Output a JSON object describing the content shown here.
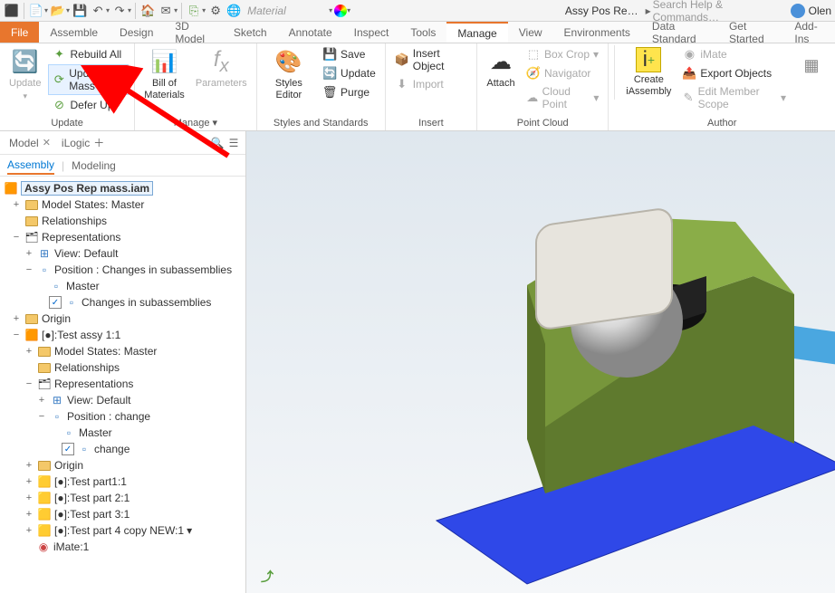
{
  "qat": {
    "material": "Material",
    "doc": "Assy Pos Re…",
    "search": "Search Help & Commands…",
    "user": "Olen"
  },
  "tabs": [
    {
      "label": "File",
      "cls": "file"
    },
    {
      "label": "Assemble"
    },
    {
      "label": "Design"
    },
    {
      "label": "3D Model"
    },
    {
      "label": "Sketch"
    },
    {
      "label": "Annotate"
    },
    {
      "label": "Inspect"
    },
    {
      "label": "Tools"
    },
    {
      "label": "Manage",
      "cls": "active"
    },
    {
      "label": "View"
    },
    {
      "label": "Environments"
    },
    {
      "label": "Data Standard"
    },
    {
      "label": "Get Started"
    },
    {
      "label": "Add-Ins"
    }
  ],
  "ribbon": {
    "update": {
      "title": "Update",
      "big": "Update",
      "rebuild": "Rebuild All",
      "mass": "Update Mass",
      "defer": "Defer Up"
    },
    "manage": {
      "title": "Manage ▾",
      "bom": "Bill of\nMaterials",
      "params": "Parameters"
    },
    "styles": {
      "title": "Styles and Standards",
      "editor": "Styles Editor",
      "save": "Save",
      "update": "Update",
      "purge": "Purge"
    },
    "insert": {
      "title": "Insert",
      "obj": "Insert Object",
      "import": "Import"
    },
    "pc": {
      "title": "Point Cloud",
      "attach": "Attach",
      "box": "Box Crop",
      "nav": "Navigator",
      "cloud": "Cloud Point"
    },
    "author": {
      "title": "Author",
      "create": "Create\niAssembly",
      "imate": "iMate",
      "export": "Export Objects",
      "scope": "Edit Member Scope"
    }
  },
  "browser": {
    "tab1": "Model",
    "tab2": "iLogic",
    "sub1": "Assembly",
    "sub2": "Modeling",
    "root": "Assy Pos Rep mass.iam",
    "n": {
      "modelstates": "Model States: Master",
      "relationships": "Relationships",
      "representations": "Representations",
      "viewdefault": "View: Default",
      "position": "Position : Changes in subassemblies",
      "master": "Master",
      "changes": "Changes in subassemblies",
      "origin": "Origin",
      "testassy": "[●]:Test assy 1:1",
      "poschange": "Position : change",
      "change": "change",
      "tp1": "[●]:Test part1:1",
      "tp2": "[●]:Test part 2:1",
      "tp3": "[●]:Test part 3:1",
      "tp4": "[●]:Test part 4 copy NEW:1",
      "mate": "iMate:1"
    }
  },
  "model": {
    "base_color": "#2f48e8",
    "body_color": "#77963b",
    "body_shadow": "#5f7a2e",
    "cyl_color": "#222",
    "sphere_color": "#d8d8d8",
    "panel_color": "#e7e4dd",
    "rod_color": "#4aa7e0"
  }
}
